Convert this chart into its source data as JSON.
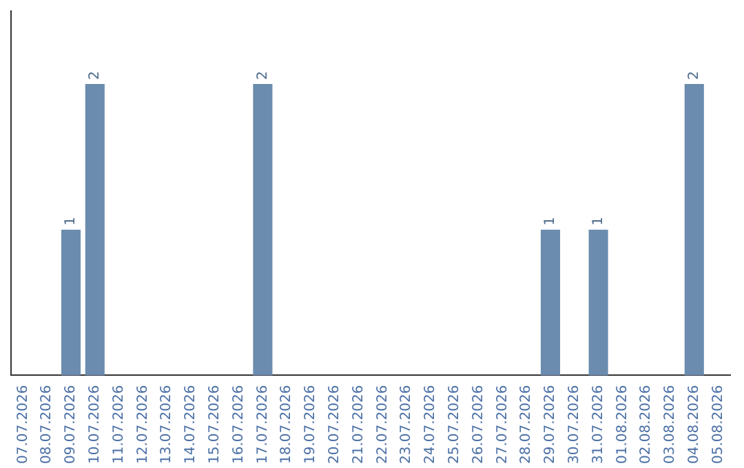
{
  "chart_data": {
    "type": "bar",
    "categories": [
      "07.07.2026",
      "08.07.2026",
      "09.07.2026",
      "10.07.2026",
      "11.07.2026",
      "12.07.2026",
      "13.07.2026",
      "14.07.2026",
      "15.07.2026",
      "16.07.2026",
      "17.07.2026",
      "18.07.2026",
      "19.07.2026",
      "20.07.2026",
      "21.07.2026",
      "22.07.2026",
      "23.07.2026",
      "24.07.2026",
      "25.07.2026",
      "26.07.2026",
      "27.07.2026",
      "28.07.2026",
      "29.07.2026",
      "30.07.2026",
      "31.07.2026",
      "01.08.2026",
      "02.08.2026",
      "03.08.2026",
      "04.08.2026",
      "05.08.2026"
    ],
    "values": [
      0,
      0,
      1,
      2,
      0,
      0,
      0,
      0,
      0,
      0,
      2,
      0,
      0,
      0,
      0,
      0,
      0,
      0,
      0,
      0,
      0,
      0,
      1,
      0,
      1,
      0,
      0,
      0,
      2,
      0
    ],
    "value_labels": [
      null,
      null,
      "1",
      "2",
      null,
      null,
      null,
      null,
      null,
      null,
      "2",
      null,
      null,
      null,
      null,
      null,
      null,
      null,
      null,
      null,
      null,
      null,
      "1",
      null,
      "1",
      null,
      null,
      null,
      "2",
      null
    ],
    "color": "#6b8cae",
    "tick_labels": "x",
    "grid": false,
    "legend": false
  }
}
